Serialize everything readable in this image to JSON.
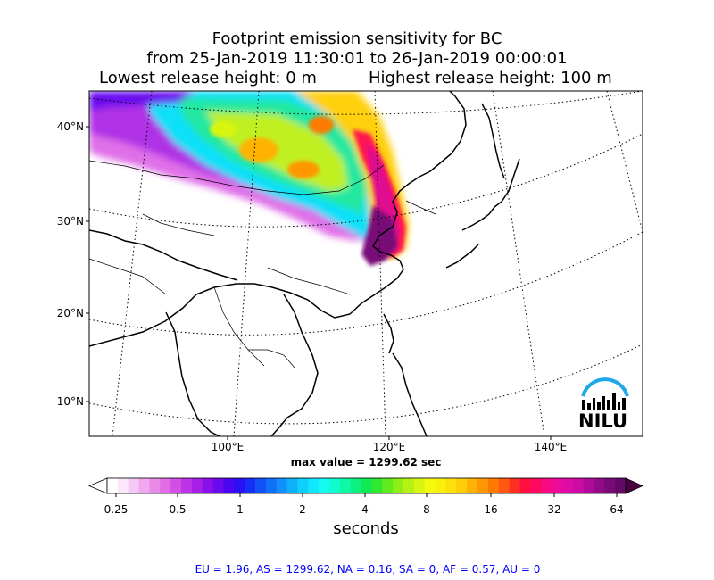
{
  "title": {
    "line1": "Footprint emission sensitivity for BC",
    "line2": "from 25-Jan-2019 11:30:01 to 26-Jan-2019 00:00:01",
    "lowest": "Lowest release height: 0 m",
    "highest": "Highest release height: 100 m"
  },
  "map": {
    "lat_labels": [
      "40°N",
      "30°N",
      "20°N",
      "10°N"
    ],
    "lon_labels": [
      "100°E",
      "120°E",
      "140°E"
    ],
    "logo_text": "NILU",
    "max_value": "max value = 1299.62 sec"
  },
  "colorbar": {
    "ticks": [
      "0.25",
      "0.5",
      "1",
      "2",
      "4",
      "8",
      "16",
      "32",
      "64"
    ],
    "units": "seconds",
    "colors": [
      "#ffffff",
      "#fbe7fb",
      "#f6c8f6",
      "#f0a8f0",
      "#e98ae9",
      "#e06ce6",
      "#d24fe6",
      "#bf33e6",
      "#a820e6",
      "#8a10ea",
      "#6a08ee",
      "#4a06f0",
      "#2a10f2",
      "#1530f4",
      "#1050f6",
      "#1070f8",
      "#0f90fa",
      "#0fb0fb",
      "#0fcffc",
      "#10e8fd",
      "#12fcf0",
      "#10fccc",
      "#0ef8a6",
      "#0cf280",
      "#10ea55",
      "#30e830",
      "#60ea20",
      "#90ee18",
      "#b8f214",
      "#d8f610",
      "#f2fa0e",
      "#fbf00c",
      "#fde00a",
      "#ffcc08",
      "#ffb206",
      "#ff9604",
      "#ff7a02",
      "#ff5810",
      "#ff3020",
      "#ff1040",
      "#ff0860",
      "#f80a80",
      "#ee0a98",
      "#e00aa8",
      "#cc0aa6",
      "#b00a98",
      "#920a88",
      "#780a78",
      "#600a66"
    ],
    "under_color": "#ffffff",
    "over_color": "#4a0040"
  },
  "summary": "EU = 1.96,  AS = 1299.62,  NA = 0.16,  SA = 0,  AF = 0.57,  AU = 0"
}
